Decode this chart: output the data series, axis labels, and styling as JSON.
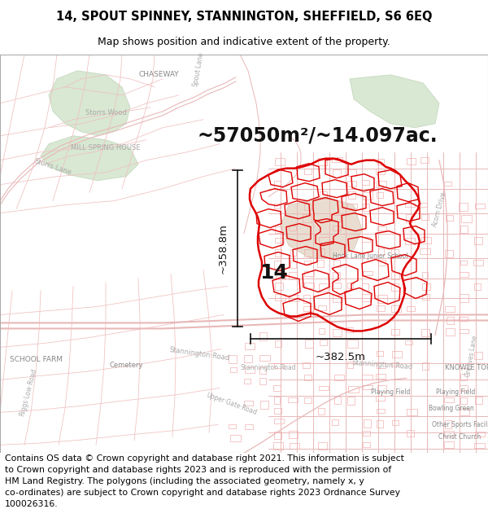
{
  "title_line1": "14, SPOUT SPINNEY, STANNINGTON, SHEFFIELD, S6 6EQ",
  "title_line2": "Map shows position and indicative extent of the property.",
  "area_text": "~57050m²/~14.097ac.",
  "label_14": "14",
  "dim_vertical": "~358.8m",
  "dim_horizontal": "~382.5m",
  "footer_text": "Contains OS data © Crown copyright and database right 2021. This information is subject\nto Crown copyright and database rights 2023 and is reproduced with the permission of\nHM Land Registry. The polygons (including the associated geometry, namely x, y\nco-ordinates) are subject to Crown copyright and database rights 2023 Ordnance Survey\n100026316.",
  "bg_color": "#ffffff",
  "map_bg": "#ffffff",
  "title_fontsize": 10.5,
  "subtitle_fontsize": 9.0,
  "area_fontsize": 17,
  "dim_fontsize": 9.5,
  "label_fontsize": 18,
  "footer_fontsize": 7.8,
  "arrow_color": "#111111",
  "map_label_color": "#888888",
  "road_line_color": "#f0c0c0",
  "green_color": "#d4e6d0",
  "property_edge": "#dd0000",
  "sub_edge": "#dd0000"
}
